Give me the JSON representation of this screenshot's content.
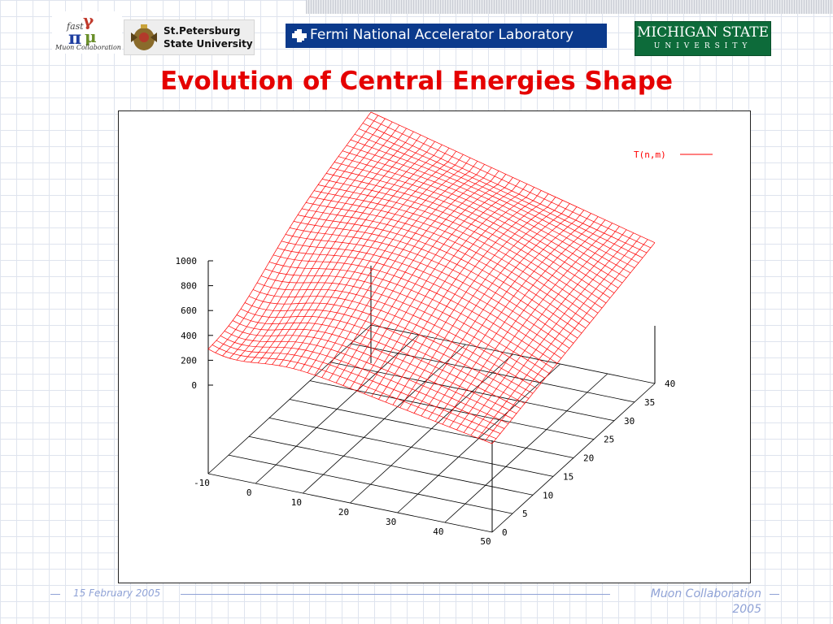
{
  "slide": {
    "title": "Evolution of Central Energies Shape",
    "footer_date": "15 February 2005",
    "footer_org_line1": "Muon Collaboration",
    "footer_org_line2": "2005"
  },
  "logos": {
    "muon": {
      "caption": "Muon Collaboration"
    },
    "spb": {
      "line1": "St.Petersburg",
      "line2": "State University"
    },
    "fermi": {
      "text": "Fermi National Accelerator Laboratory",
      "color": "#0b3a8c"
    },
    "msu": {
      "line1": "MICHIGAN STATE",
      "line2": "UNIVERSITY",
      "color": "#0d6b3a"
    }
  },
  "chart_data": {
    "type": "surface",
    "legend": "T(n,m)",
    "legend_position": "top-right",
    "color": "#ff0000",
    "n_ticks": [
      -10,
      0,
      10,
      20,
      30,
      40,
      50
    ],
    "m_ticks": [
      0,
      5,
      10,
      15,
      20,
      25,
      30,
      35,
      40
    ],
    "z_ticks": [
      0,
      200,
      400,
      600,
      800,
      1000
    ],
    "n_range": [
      -10,
      50
    ],
    "m_range": [
      0,
      40
    ],
    "z_range": [
      0,
      1000
    ],
    "grid": true,
    "corner_values": {
      "n_-10_m_0": 420,
      "n_-10_m_40": 1000,
      "n_50_m_0": 0,
      "n_50_m_40": 420
    }
  }
}
